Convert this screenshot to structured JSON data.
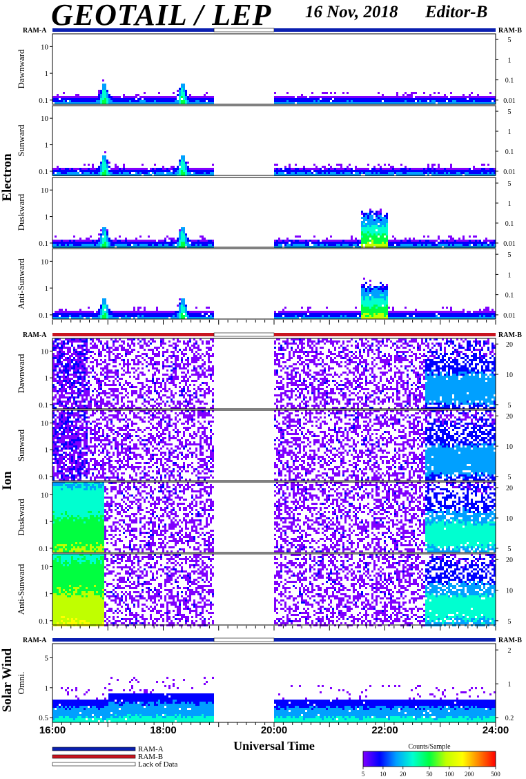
{
  "header": {
    "title": "GEOTAIL / LEP",
    "date": "16 Nov, 2018",
    "editor": "Editor-B"
  },
  "sections": [
    {
      "label": "Electron",
      "ram_left": "RAM-A",
      "ram_right": "RAM-B",
      "ram_color": "#0a1fb0",
      "panels": [
        {
          "name": "dawnward",
          "label": "Dawnward",
          "left_ticks": [
            "10",
            "1",
            "0.1"
          ],
          "right_ticks": [
            "5",
            "1",
            "0.1",
            "0.01"
          ]
        },
        {
          "name": "sunward",
          "label": "Sunward",
          "left_ticks": [
            "10",
            "1",
            "0.1"
          ],
          "right_ticks": [
            "5",
            "1",
            "0.1",
            "0.01"
          ]
        },
        {
          "name": "duskward",
          "label": "Duskward",
          "left_ticks": [
            "10",
            "1",
            "0.1"
          ],
          "right_ticks": [
            "5",
            "1",
            "0.1",
            "0.01"
          ]
        },
        {
          "name": "anti-sunward",
          "label": "Anti-Sunward",
          "left_ticks": [
            "10",
            "1",
            "0.1"
          ],
          "right_ticks": [
            "5",
            "1",
            "0.1",
            "0.01"
          ]
        }
      ]
    },
    {
      "label": "Ion",
      "ram_left": "RAM-A",
      "ram_right": "RAM-B",
      "ram_color": "#c8141e",
      "panels": [
        {
          "name": "dawnward",
          "label": "Dawnward",
          "left_ticks": [
            "10",
            "1",
            "0.1"
          ],
          "right_ticks": [
            "20",
            "10",
            "5"
          ]
        },
        {
          "name": "sunward",
          "label": "Sunward",
          "left_ticks": [
            "10",
            "1",
            "0.1"
          ],
          "right_ticks": [
            "20",
            "10",
            "5"
          ]
        },
        {
          "name": "duskward",
          "label": "Duskward",
          "left_ticks": [
            "10",
            "1",
            "0.1"
          ],
          "right_ticks": [
            "20",
            "10",
            "5"
          ]
        },
        {
          "name": "anti-sunward",
          "label": "Anti-Sunward",
          "left_ticks": [
            "10",
            "1",
            "0.1"
          ],
          "right_ticks": [
            "20",
            "10",
            "5"
          ]
        }
      ]
    },
    {
      "label": "Solar Wind",
      "ram_left": "RAM-A",
      "ram_right": "RAM-B",
      "ram_color": "#0a1fb0",
      "panels": [
        {
          "name": "omni",
          "label": "Omni.",
          "left_ticks": [
            "5",
            "1",
            "0.5"
          ],
          "right_ticks": [
            "2",
            "1",
            "0.2"
          ]
        }
      ]
    }
  ],
  "chart_data": {
    "type": "heatmap",
    "xlabel": "Universal Time",
    "x_ticks": [
      "16:00",
      "18:00",
      "20:00",
      "22:00",
      "24:00"
    ],
    "xlim": [
      "16:00",
      "24:00"
    ],
    "data_gap": [
      "18:55",
      "20:00"
    ],
    "colorbar": {
      "title": "Counts/Sample",
      "ticks": [
        "5",
        "10",
        "20",
        "50",
        "100",
        "200",
        "500"
      ],
      "colors": [
        "#8000ff",
        "#0000ff",
        "#00a0ff",
        "#00ffd0",
        "#00ff40",
        "#c0ff00",
        "#ffff00",
        "#ff8000",
        "#ff0000"
      ]
    },
    "electron_features": [
      {
        "time": "16:55",
        "panels": [
          "dawnward",
          "sunward",
          "duskward",
          "anti-sunward"
        ],
        "kind": "peak"
      },
      {
        "time": "18:20",
        "panels": [
          "dawnward",
          "sunward",
          "duskward",
          "anti-sunward"
        ],
        "kind": "peak"
      },
      {
        "time_start": "21:35",
        "time_end": "22:00",
        "panels": [
          "duskward",
          "anti-sunward"
        ],
        "kind": "enhancement"
      }
    ]
  },
  "legend": {
    "items": [
      {
        "label": "RAM-A",
        "color": "#0a1fb0"
      },
      {
        "label": "RAM-B",
        "color": "#c8141e"
      },
      {
        "label": "Lack of Data",
        "color": "#ffffff"
      }
    ]
  }
}
